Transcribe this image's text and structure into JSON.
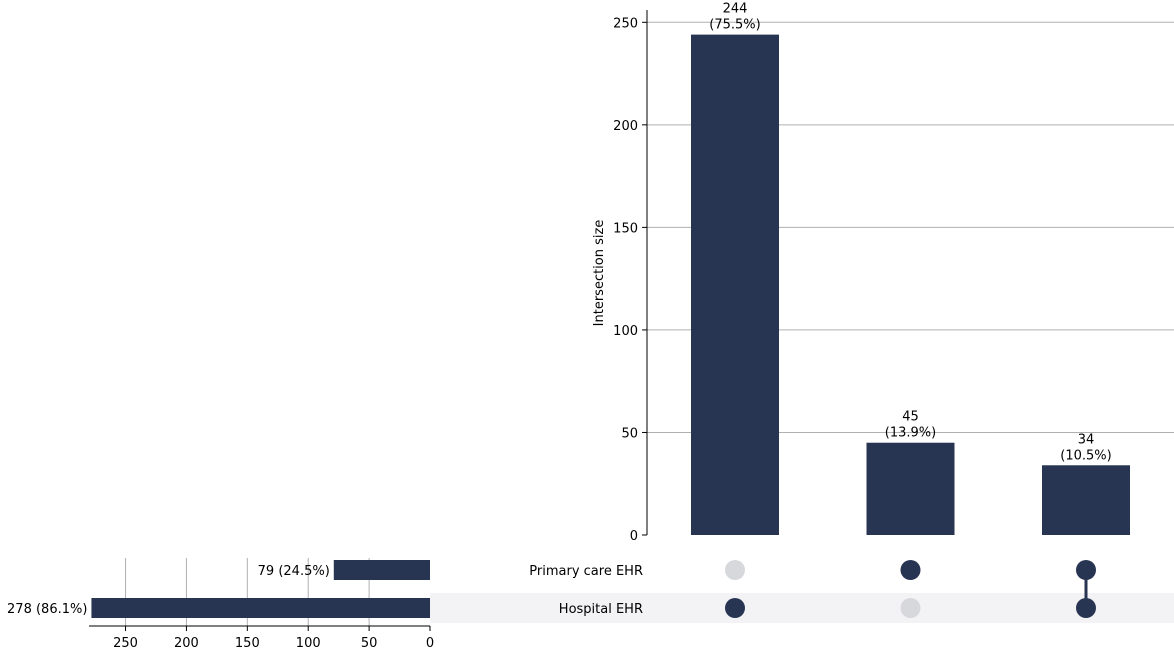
{
  "chart_data": {
    "type": "upset",
    "ylabel": "Intersection size",
    "ylim": [
      0,
      256
    ],
    "yticks": [
      0,
      50,
      100,
      150,
      200,
      250
    ],
    "intersections": [
      {
        "value": 244,
        "count_label": "244",
        "pct_label": "(75.5%)",
        "sets": [
          "Hospital EHR"
        ]
      },
      {
        "value": 45,
        "count_label": "45",
        "pct_label": "(13.9%)",
        "sets": [
          "Primary care EHR"
        ]
      },
      {
        "value": 34,
        "count_label": "34",
        "pct_label": "(10.5%)",
        "sets": [
          "Primary care EHR",
          "Hospital EHR"
        ]
      }
    ],
    "sets": [
      {
        "name": "Primary care EHR",
        "size": 79,
        "size_label": "79 (24.5%)"
      },
      {
        "name": "Hospital EHR",
        "size": 278,
        "size_label": "278 (86.1%)"
      }
    ],
    "set_size_xlim": [
      0,
      280
    ],
    "set_size_xticks": [
      250,
      200,
      150,
      100,
      50,
      0
    ],
    "grid": true
  },
  "colors": {
    "bar": "#283552",
    "dot_active": "#283552",
    "dot_inactive": "#d6d8dc",
    "row_shade": "#f3f3f6",
    "grid": "#b0b0b0",
    "axis": "#000000"
  }
}
